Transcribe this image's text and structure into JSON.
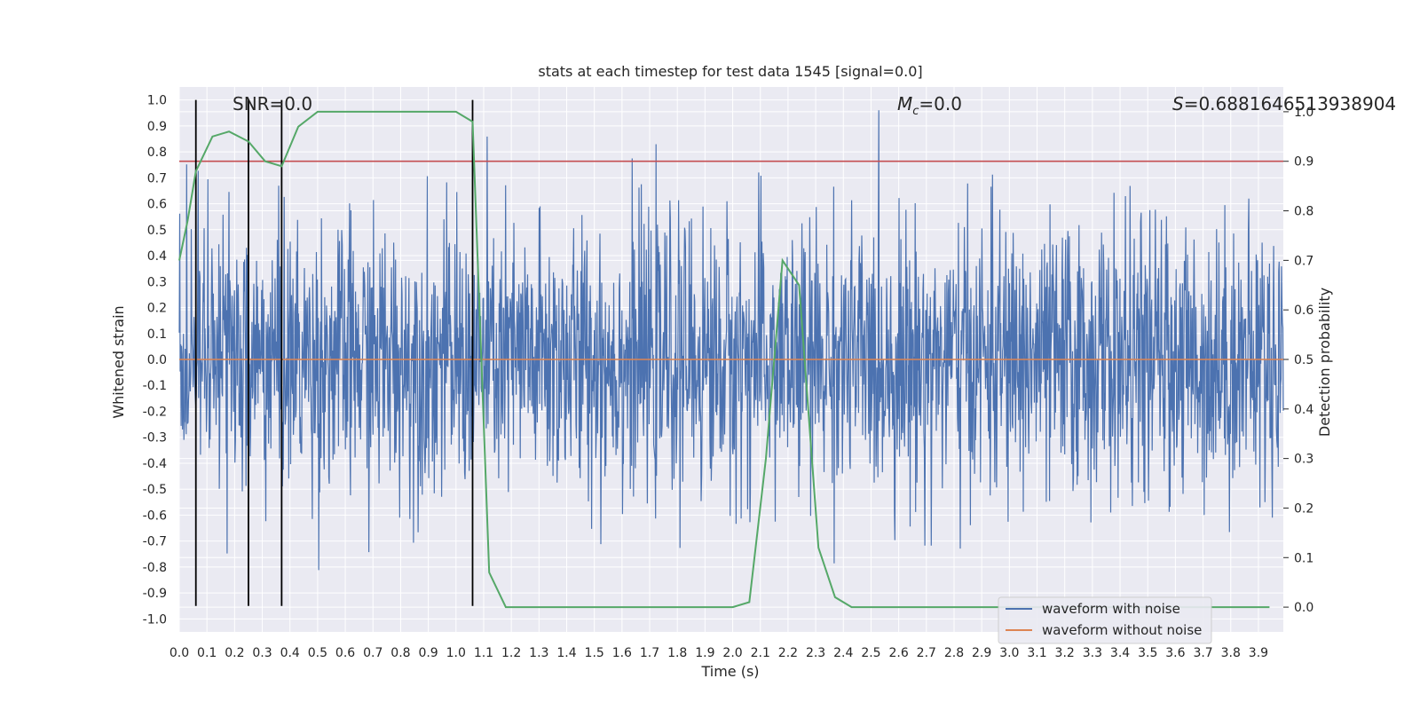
{
  "chart_data": {
    "type": "line",
    "title": "stats at each timestep for test data 1545 [signal=0.0]",
    "xlabel": "Time (s)",
    "ylabel": "Whitened strain",
    "y2label": "Detection probability",
    "xlim": [
      0.0,
      3.99
    ],
    "ylim": [
      -1.05,
      1.05
    ],
    "y2lim": [
      -0.05,
      1.05
    ],
    "x_ticks": [
      "0.0",
      "0.1",
      "0.2",
      "0.3",
      "0.4",
      "0.5",
      "0.6",
      "0.7",
      "0.8",
      "0.9",
      "1.0",
      "1.1",
      "1.2",
      "1.3",
      "1.4",
      "1.5",
      "1.6",
      "1.7",
      "1.8",
      "1.9",
      "2.0",
      "2.1",
      "2.2",
      "2.3",
      "2.4",
      "2.5",
      "2.6",
      "2.7",
      "2.8",
      "2.9",
      "3.0",
      "3.1",
      "3.2",
      "3.3",
      "3.4",
      "3.5",
      "3.6",
      "3.7",
      "3.8",
      "3.9"
    ],
    "y_ticks": [
      "1.0",
      "0.9",
      "0.8",
      "0.7",
      "0.6",
      "0.5",
      "0.4",
      "0.3",
      "0.2",
      "0.1",
      "0.0",
      "-0.1",
      "-0.2",
      "-0.3",
      "-0.4",
      "-0.5",
      "-0.6",
      "-0.7",
      "-0.8",
      "-0.9",
      "-1.0"
    ],
    "y2_ticks": [
      "1.0",
      "0.9",
      "0.8",
      "0.7",
      "0.6",
      "0.5",
      "0.4",
      "0.3",
      "0.2",
      "0.1",
      "0.0"
    ],
    "annotations": {
      "snr": "SNR=0.0",
      "mc_symbol": "M",
      "mc_sub": "c",
      "mc_value": "=0.0",
      "s_symbol": "S",
      "s_value": "=0.6881646513938904"
    },
    "threshold": 0.9,
    "vertical_lines": [
      0.06,
      0.25,
      0.37,
      1.06
    ],
    "series": [
      {
        "name": "waveform with noise",
        "color": "#4c72b0",
        "amplitude_envelope": 0.8
      },
      {
        "name": "waveform without noise",
        "color": "#dd8452",
        "values": [
          0.0
        ]
      },
      {
        "name": "detection probability",
        "color": "#55a868",
        "x": [
          0.0,
          0.03,
          0.06,
          0.12,
          0.18,
          0.25,
          0.31,
          0.37,
          0.43,
          0.5,
          0.56,
          0.62,
          0.68,
          0.75,
          0.81,
          0.87,
          0.93,
          1.0,
          1.06,
          1.12,
          1.18,
          1.3,
          1.56,
          1.8,
          2.0,
          2.06,
          2.12,
          2.18,
          2.24,
          2.31,
          2.37,
          2.43,
          2.56,
          2.8,
          3.1,
          3.5,
          3.94
        ],
        "values": [
          0.7,
          0.78,
          0.88,
          0.95,
          0.96,
          0.94,
          0.9,
          0.89,
          0.97,
          1.0,
          1.0,
          1.0,
          1.0,
          1.0,
          1.0,
          1.0,
          1.0,
          1.0,
          0.98,
          0.07,
          0.0,
          0.0,
          0.0,
          0.0,
          0.0,
          0.01,
          0.3,
          0.7,
          0.65,
          0.12,
          0.02,
          0.0,
          0.0,
          0.0,
          0.0,
          0.0,
          0.0
        ]
      }
    ],
    "legend": [
      "waveform with noise",
      "waveform without noise"
    ],
    "colors": {
      "background": "#eaeaf2",
      "grid": "#ffffff",
      "threshold": "#c44e52",
      "vline": "#000000"
    }
  }
}
